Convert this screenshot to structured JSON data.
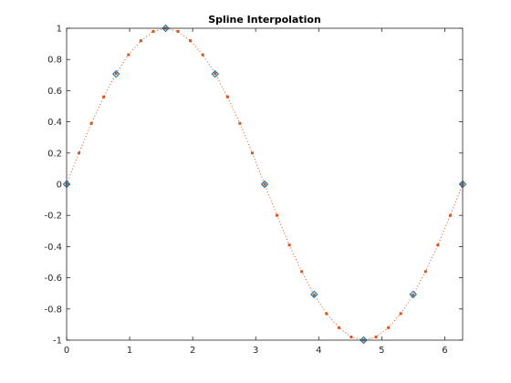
{
  "chart_data": {
    "type": "line",
    "title": "Spline Interpolation",
    "xlabel": "",
    "ylabel": "",
    "xlim": [
      0,
      6.2832
    ],
    "ylim": [
      -1,
      1
    ],
    "grid": false,
    "legend": "none",
    "x_ticks": [
      {
        "value": 0,
        "label": "0"
      },
      {
        "value": 1,
        "label": "1"
      },
      {
        "value": 2,
        "label": "2"
      },
      {
        "value": 3,
        "label": "3"
      },
      {
        "value": 4,
        "label": "4"
      },
      {
        "value": 5,
        "label": "5"
      },
      {
        "value": 6,
        "label": "6"
      }
    ],
    "y_ticks": [
      {
        "value": 1,
        "label": "1"
      },
      {
        "value": 0.8,
        "label": "0.8"
      },
      {
        "value": 0.6,
        "label": "0.6"
      },
      {
        "value": 0.4,
        "label": "0.4"
      },
      {
        "value": 0.2,
        "label": "0.2"
      },
      {
        "value": 0,
        "label": "0"
      },
      {
        "value": -0.2,
        "label": "-0.2"
      },
      {
        "value": -0.4,
        "label": "-0.4"
      },
      {
        "value": -0.6,
        "label": "-0.6"
      },
      {
        "value": -0.8,
        "label": "-0.8"
      },
      {
        "value": -1,
        "label": "-1"
      }
    ],
    "series": [
      {
        "marker": "diamond",
        "color": "#0072bd",
        "line": "none",
        "x": [
          0,
          0.7854,
          1.5708,
          2.3562,
          3.1416,
          3.927,
          4.7124,
          5.4978,
          6.2832
        ],
        "y": [
          0,
          0.7071,
          1,
          0.7071,
          0,
          -0.7071,
          -1,
          -0.7071,
          0
        ]
      },
      {
        "marker": "square-dot",
        "color": "#d95319",
        "line": "dotted",
        "x": [
          0,
          0.1963,
          0.3927,
          0.589,
          0.7854,
          0.9817,
          1.1781,
          1.3744,
          1.5708,
          1.7671,
          1.9635,
          2.1598,
          2.3562,
          2.5525,
          2.7489,
          2.9452,
          3.1416,
          3.3379,
          3.5343,
          3.7306,
          3.927,
          4.1233,
          4.3197,
          4.516,
          4.7124,
          4.9087,
          5.1051,
          5.3014,
          5.4978,
          5.6941,
          5.8905,
          6.0868,
          6.2832
        ],
        "y": [
          0,
          0.2,
          0.39,
          0.56,
          0.71,
          0.83,
          0.92,
          0.98,
          1,
          0.98,
          0.92,
          0.83,
          0.71,
          0.56,
          0.39,
          0.2,
          0,
          -0.2,
          -0.39,
          -0.56,
          -0.71,
          -0.83,
          -0.92,
          -0.98,
          -1,
          -0.98,
          -0.92,
          -0.83,
          -0.71,
          -0.56,
          -0.39,
          -0.2,
          0
        ]
      }
    ]
  }
}
